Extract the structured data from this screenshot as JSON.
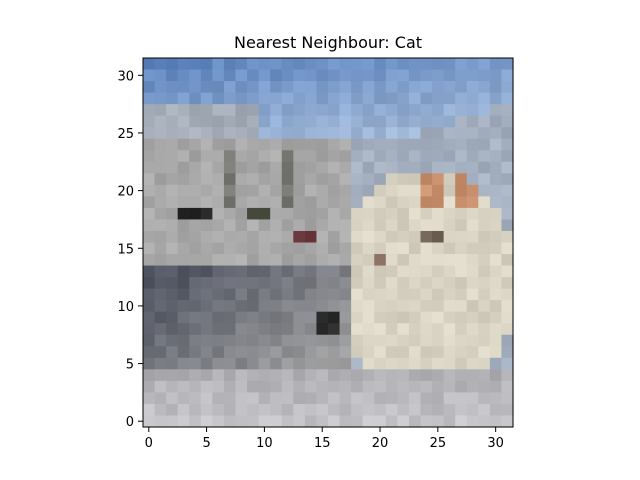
{
  "chart_data": {
    "type": "heatmap",
    "title": "Nearest Neighbour: Cat",
    "xlabel": "",
    "ylabel": "",
    "xlim": [
      -0.5,
      31.5
    ],
    "ylim": [
      31.5,
      -0.5
    ],
    "x_ticks": [
      0,
      5,
      10,
      15,
      20,
      25,
      30
    ],
    "y_ticks": [
      0,
      5,
      10,
      15,
      20,
      25,
      30
    ],
    "x_tick_labels": [
      "0",
      "5",
      "10",
      "15",
      "20",
      "25",
      "30"
    ],
    "y_tick_labels": [
      "0",
      "5",
      "10",
      "15",
      "20",
      "25",
      "30"
    ],
    "grid": false,
    "image_size": [
      32,
      32
    ],
    "image_description": "Low-resolution 32x32 pixelated photo of a white cat sitting on a road beside a white car under a blue sky",
    "palette": {
      "sky_top": "#5f86c0",
      "sky_bottom": "#9fb6d6",
      "car_body": "#a8a8a8",
      "car_shadow": "#4a4f5c",
      "road": "#b0b0b4",
      "cat_fur": "#d8d3c2",
      "cat_ears": "#c9906e",
      "dark_spot": "#2a2a2a",
      "window_dark": "#3c4033"
    }
  }
}
